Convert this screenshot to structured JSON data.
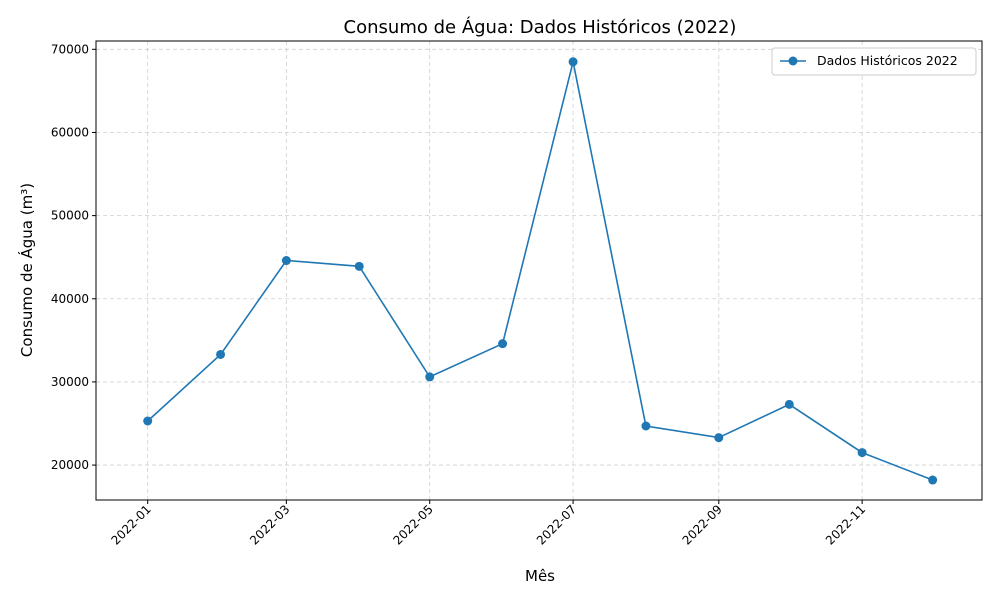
{
  "chart_data": {
    "type": "line",
    "title": "Consumo de Água: Dados Históricos (2022)",
    "xlabel": "Mês",
    "ylabel": "Consumo de Água (m³)",
    "x": [
      "2022-01-01",
      "2022-02-01",
      "2022-03-01",
      "2022-04-01",
      "2022-05-01",
      "2022-06-01",
      "2022-07-01",
      "2022-08-01",
      "2022-09-01",
      "2022-10-01",
      "2022-11-01",
      "2022-12-01"
    ],
    "xticks": [
      "2022-01-01",
      "2022-03-01",
      "2022-05-01",
      "2022-07-01",
      "2022-09-01",
      "2022-11-01"
    ],
    "xtick_labels": [
      "2022-01",
      "2022-03",
      "2022-05",
      "2022-07",
      "2022-09",
      "2022-11"
    ],
    "xlim": [
      "2021-12-10",
      "2022-12-22"
    ],
    "ylim": [
      15800,
      71000
    ],
    "yticks": [
      20000,
      30000,
      40000,
      50000,
      60000,
      70000
    ],
    "ytick_labels": [
      "20000",
      "30000",
      "40000",
      "50000",
      "60000",
      "70000"
    ],
    "grid": true,
    "legend_position": "top-right",
    "series": [
      {
        "name": "Dados Históricos 2022",
        "color": "#1f77b4",
        "marker": "circle",
        "values": [
          25300,
          33300,
          44600,
          43900,
          30600,
          34600,
          68500,
          24700,
          23300,
          27300,
          21500,
          18200
        ]
      }
    ]
  }
}
